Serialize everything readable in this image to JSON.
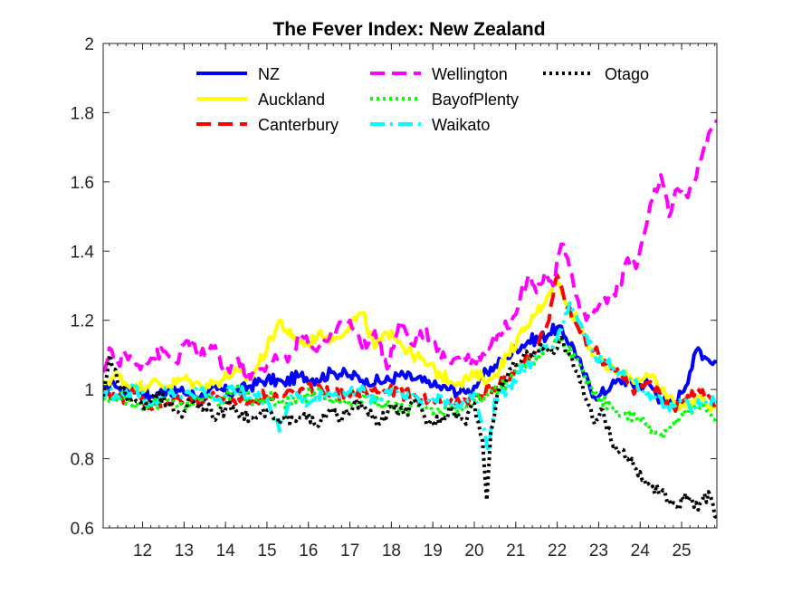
{
  "chart_data": {
    "type": "line",
    "title": "The Fever Index: New Zealand",
    "xlabel": "",
    "ylabel": "",
    "xlim": [
      11.05,
      25.85
    ],
    "ylim": [
      0.6,
      2.0
    ],
    "xticks": [
      12,
      13,
      14,
      15,
      16,
      17,
      18,
      19,
      20,
      21,
      22,
      23,
      24,
      25
    ],
    "yticks": [
      0.6,
      0.8,
      1.0,
      1.2,
      1.4,
      1.6,
      1.8,
      2.0
    ],
    "ytick_labels": [
      "0.6",
      "0.8",
      "1",
      "1.2",
      "1.4",
      "1.6",
      "1.8",
      "2"
    ],
    "legend_location": "top",
    "series": [
      {
        "name": "NZ",
        "color": "#0000ff",
        "style": "solid",
        "width": 4,
        "x": [
          11.05,
          11.3,
          11.5,
          11.8,
          12.2,
          12.6,
          13.0,
          13.4,
          13.8,
          14.2,
          14.6,
          15.0,
          15.4,
          15.8,
          16.2,
          16.6,
          17.0,
          17.4,
          17.8,
          18.2,
          18.6,
          19.0,
          19.4,
          19.8,
          20.1,
          20.3,
          20.5,
          20.8,
          21.0,
          21.3,
          21.6,
          21.8,
          22.0,
          22.2,
          22.4,
          22.6,
          22.8,
          23.0,
          23.3,
          23.6,
          23.9,
          24.2,
          24.5,
          24.8,
          25.0,
          25.2,
          25.4,
          25.6,
          25.85
        ],
        "values": [
          1.0,
          1.02,
          0.99,
          1.01,
          0.98,
          1.0,
          0.99,
          0.98,
          1.0,
          0.99,
          1.01,
          1.03,
          1.02,
          1.04,
          1.03,
          1.05,
          1.04,
          1.03,
          1.02,
          1.04,
          1.03,
          1.01,
          1.0,
          0.99,
          1.02,
          1.05,
          1.07,
          1.09,
          1.12,
          1.14,
          1.15,
          1.16,
          1.18,
          1.15,
          1.12,
          1.06,
          1.0,
          0.98,
          1.01,
          1.03,
          1.01,
          1.02,
          0.97,
          0.96,
          0.99,
          1.05,
          1.12,
          1.09,
          1.08
        ]
      },
      {
        "name": "Auckland",
        "color": "#ffff00",
        "style": "solid",
        "width": 4,
        "x": [
          11.05,
          11.4,
          11.8,
          12.2,
          12.6,
          13.0,
          13.4,
          13.8,
          14.2,
          14.6,
          15.0,
          15.3,
          15.6,
          16.0,
          16.3,
          16.6,
          17.0,
          17.3,
          17.6,
          18.0,
          18.4,
          18.8,
          19.2,
          19.6,
          20.0,
          20.4,
          20.8,
          21.2,
          21.5,
          21.8,
          22.0,
          22.2,
          22.5,
          22.8,
          23.0,
          23.4,
          23.8,
          24.2,
          24.5,
          24.8,
          25.1,
          25.4,
          25.6,
          25.85
        ],
        "values": [
          1.02,
          1.04,
          1.0,
          1.02,
          1.01,
          1.03,
          1.01,
          1.02,
          1.05,
          1.03,
          1.12,
          1.2,
          1.15,
          1.13,
          1.17,
          1.14,
          1.19,
          1.22,
          1.12,
          1.17,
          1.11,
          1.08,
          1.04,
          1.02,
          1.04,
          1.03,
          1.1,
          1.17,
          1.22,
          1.28,
          1.31,
          1.25,
          1.2,
          1.12,
          1.08,
          1.05,
          1.03,
          1.04,
          1.0,
          0.97,
          0.95,
          0.98,
          0.96,
          0.95
        ]
      },
      {
        "name": "Canterbury",
        "color": "#ff0000",
        "style": "dash",
        "width": 4,
        "x": [
          11.05,
          11.4,
          11.8,
          12.2,
          12.6,
          13.0,
          13.4,
          13.8,
          14.2,
          14.6,
          15.0,
          15.4,
          15.8,
          16.2,
          16.6,
          17.0,
          17.4,
          17.8,
          18.2,
          18.6,
          19.0,
          19.4,
          19.8,
          20.2,
          20.6,
          21.0,
          21.4,
          21.8,
          22.0,
          22.2,
          22.5,
          22.8,
          23.0,
          23.3,
          23.6,
          23.9,
          24.2,
          24.5,
          24.8,
          25.1,
          25.4,
          25.6,
          25.85
        ],
        "values": [
          0.98,
          0.97,
          0.99,
          0.95,
          0.96,
          0.97,
          0.96,
          0.98,
          0.97,
          0.96,
          0.99,
          0.98,
          1.0,
          1.0,
          0.99,
          0.98,
          0.99,
          1.0,
          0.99,
          0.98,
          0.97,
          0.96,
          0.97,
          0.99,
          1.01,
          1.06,
          1.1,
          1.2,
          1.33,
          1.24,
          1.18,
          1.13,
          1.1,
          1.06,
          1.03,
          1.0,
          1.02,
          0.98,
          0.95,
          0.97,
          1.0,
          0.97,
          0.95
        ]
      },
      {
        "name": "Wellington",
        "color": "#ff00ff",
        "style": "dash",
        "width": 4,
        "x": [
          11.05,
          11.2,
          11.4,
          11.6,
          11.9,
          12.2,
          12.5,
          12.8,
          13.1,
          13.4,
          13.7,
          14.0,
          14.3,
          14.6,
          14.9,
          15.2,
          15.5,
          15.8,
          16.1,
          16.4,
          16.7,
          17.0,
          17.3,
          17.6,
          17.9,
          18.2,
          18.5,
          18.8,
          19.1,
          19.4,
          19.7,
          20.0,
          20.3,
          20.6,
          20.9,
          21.1,
          21.3,
          21.5,
          21.7,
          21.9,
          22.1,
          22.3,
          22.5,
          22.7,
          22.9,
          23.1,
          23.3,
          23.5,
          23.7,
          23.9,
          24.1,
          24.3,
          24.5,
          24.7,
          24.9,
          25.1,
          25.3,
          25.5,
          25.7,
          25.85
        ],
        "values": [
          1.05,
          1.12,
          1.08,
          1.1,
          1.07,
          1.09,
          1.11,
          1.08,
          1.14,
          1.1,
          1.12,
          1.05,
          1.09,
          1.03,
          1.06,
          1.1,
          1.08,
          1.16,
          1.12,
          1.14,
          1.18,
          1.2,
          1.12,
          1.17,
          1.06,
          1.2,
          1.13,
          1.17,
          1.11,
          1.08,
          1.1,
          1.08,
          1.12,
          1.16,
          1.2,
          1.26,
          1.33,
          1.28,
          1.34,
          1.3,
          1.42,
          1.35,
          1.26,
          1.2,
          1.23,
          1.25,
          1.27,
          1.3,
          1.38,
          1.35,
          1.45,
          1.55,
          1.62,
          1.5,
          1.58,
          1.56,
          1.6,
          1.68,
          1.75,
          1.78
        ]
      },
      {
        "name": "BayofPlenty",
        "color": "#00ff00",
        "style": "dot",
        "width": 4,
        "x": [
          11.05,
          11.4,
          11.8,
          12.2,
          12.6,
          13.0,
          13.4,
          13.8,
          14.2,
          14.6,
          15.0,
          15.4,
          15.8,
          16.2,
          16.6,
          17.0,
          17.4,
          17.8,
          18.2,
          18.6,
          19.0,
          19.4,
          19.8,
          20.2,
          20.6,
          21.0,
          21.4,
          21.8,
          22.1,
          22.4,
          22.7,
          23.0,
          23.3,
          23.6,
          23.9,
          24.2,
          24.5,
          24.8,
          25.1,
          25.4,
          25.6,
          25.85
        ],
        "values": [
          0.97,
          0.98,
          0.96,
          0.95,
          0.97,
          0.95,
          0.98,
          0.96,
          1.0,
          0.97,
          0.98,
          0.96,
          0.97,
          1.0,
          0.97,
          0.95,
          0.98,
          0.96,
          0.94,
          0.96,
          0.93,
          0.94,
          0.95,
          0.98,
          1.0,
          1.05,
          1.08,
          1.12,
          1.15,
          1.1,
          1.02,
          0.97,
          0.95,
          0.93,
          0.92,
          0.9,
          0.87,
          0.9,
          0.93,
          0.95,
          0.94,
          0.92
        ]
      },
      {
        "name": "Waikato",
        "color": "#00ffff",
        "style": "dashdot",
        "width": 4,
        "x": [
          11.05,
          11.4,
          11.8,
          12.2,
          12.6,
          13.0,
          13.4,
          13.8,
          14.2,
          14.6,
          15.0,
          15.3,
          15.6,
          16.0,
          16.4,
          16.8,
          17.2,
          17.6,
          18.0,
          18.4,
          18.8,
          19.2,
          19.6,
          20.0,
          20.25,
          20.35,
          20.5,
          20.8,
          21.1,
          21.4,
          21.7,
          22.0,
          22.3,
          22.6,
          22.9,
          23.2,
          23.5,
          23.8,
          24.1,
          24.4,
          24.7,
          25.0,
          25.3,
          25.6,
          25.85
        ],
        "values": [
          1.0,
          0.98,
          1.0,
          0.96,
          0.99,
          0.98,
          1.0,
          0.97,
          1.0,
          0.98,
          0.97,
          0.88,
          0.99,
          0.96,
          0.99,
          0.98,
          1.0,
          0.97,
          1.0,
          0.99,
          0.96,
          0.98,
          0.95,
          0.99,
          0.88,
          0.82,
          0.98,
          1.0,
          1.05,
          1.08,
          1.12,
          1.15,
          1.25,
          1.18,
          1.1,
          1.08,
          1.05,
          1.02,
          1.0,
          0.97,
          0.94,
          0.96,
          0.95,
          0.96,
          0.97
        ]
      },
      {
        "name": "Otago",
        "color": "#000000",
        "style": "dot",
        "width": 4,
        "x": [
          11.05,
          11.2,
          11.4,
          11.7,
          12.0,
          12.3,
          12.6,
          12.9,
          13.2,
          13.5,
          13.8,
          14.1,
          14.4,
          14.7,
          15.0,
          15.3,
          15.6,
          15.9,
          16.2,
          16.5,
          16.8,
          17.1,
          17.4,
          17.7,
          18.0,
          18.3,
          18.6,
          18.9,
          19.2,
          19.5,
          19.8,
          20.0,
          20.2,
          20.3,
          20.4,
          20.6,
          20.8,
          21.0,
          21.3,
          21.6,
          21.9,
          22.1,
          22.3,
          22.5,
          22.7,
          22.9,
          23.1,
          23.3,
          23.5,
          23.7,
          23.9,
          24.1,
          24.3,
          24.5,
          24.7,
          24.9,
          25.1,
          25.3,
          25.5,
          25.7,
          25.85
        ],
        "values": [
          0.98,
          1.1,
          1.02,
          0.97,
          0.95,
          0.99,
          0.96,
          0.93,
          0.97,
          0.95,
          0.92,
          0.96,
          0.93,
          0.91,
          0.94,
          0.9,
          0.92,
          0.93,
          0.89,
          0.94,
          0.91,
          0.96,
          0.94,
          0.9,
          0.95,
          0.93,
          0.96,
          0.9,
          0.92,
          0.94,
          0.9,
          0.96,
          0.85,
          0.68,
          0.88,
          1.0,
          1.04,
          1.07,
          1.1,
          1.13,
          1.1,
          1.15,
          1.1,
          1.05,
          0.97,
          0.9,
          0.94,
          0.85,
          0.82,
          0.8,
          0.77,
          0.74,
          0.72,
          0.7,
          0.68,
          0.66,
          0.7,
          0.66,
          0.68,
          0.69,
          0.63
        ]
      }
    ]
  }
}
